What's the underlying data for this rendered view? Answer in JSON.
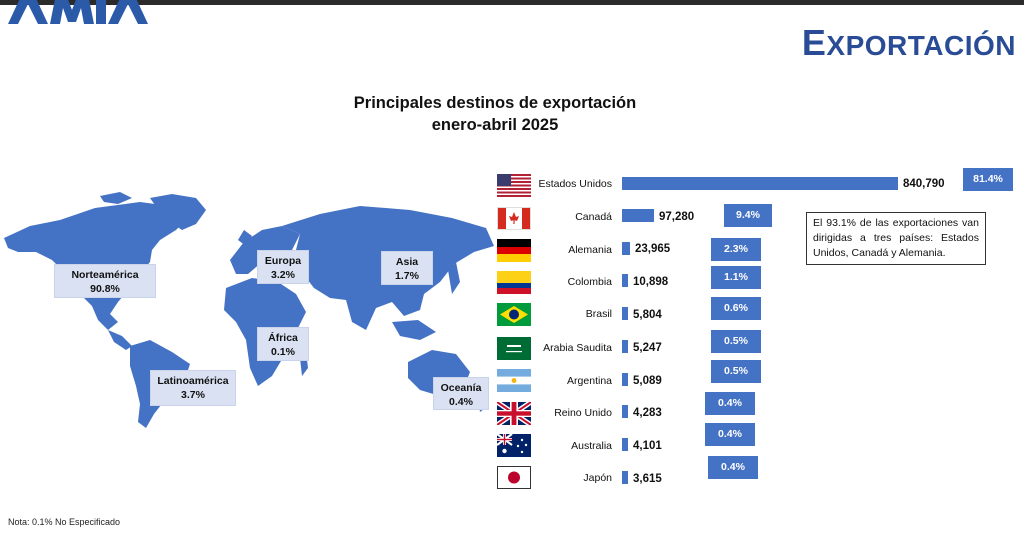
{
  "header": {
    "logo_text": "AMIA",
    "section_title": "Exportación"
  },
  "chart_title_line1": "Principales destinos de exportación",
  "chart_title_line2": "enero-abril 2025",
  "regions": [
    {
      "name": "Norteamérica",
      "pct": "90.8%"
    },
    {
      "name": "Europa",
      "pct": "3.2%"
    },
    {
      "name": "Asia",
      "pct": "1.7%"
    },
    {
      "name": "África",
      "pct": "0.1%"
    },
    {
      "name": "Latinoamérica",
      "pct": "3.7%"
    },
    {
      "name": "Oceanía",
      "pct": "0.4%"
    }
  ],
  "chart_data": {
    "type": "bar",
    "orientation": "horizontal",
    "categories": [
      "Estados Unidos",
      "Canadá",
      "Alemania",
      "Colombia",
      "Brasil",
      "Arabia Saudita",
      "Argentina",
      "Reino Unido",
      "Australia",
      "Japón"
    ],
    "values": [
      840790,
      97280,
      23965,
      10898,
      5804,
      5247,
      5089,
      4283,
      4101,
      3615
    ],
    "value_labels": [
      "840,790",
      "97,280",
      "23,965",
      "10,898",
      "5,804",
      "5,247",
      "5,089",
      "4,283",
      "4,101",
      "3,615"
    ],
    "share_labels": [
      "81.4%",
      "9.4%",
      "2.3%",
      "1.1%",
      "0.6%",
      "0.5%",
      "0.5%",
      "0.4%",
      "0.4%",
      "0.4%"
    ],
    "flag_icons": [
      "flag-usa-icon",
      "flag-canada-icon",
      "flag-germany-icon",
      "flag-colombia-icon",
      "flag-brazil-icon",
      "flag-saudi-arabia-icon",
      "flag-argentina-icon",
      "flag-uk-icon",
      "flag-australia-icon",
      "flag-japan-icon"
    ],
    "bar_color": "#4472c4"
  },
  "note": "El 93.1% de las exportaciones van dirigidas a tres países: Estados Unidos, Canadá y Alemania.",
  "footnote": "Nota: 0.1% No Especificado",
  "colors": {
    "accent": "#2a4c96",
    "bar": "#4472c4",
    "region_box": "#d9e1f2"
  }
}
